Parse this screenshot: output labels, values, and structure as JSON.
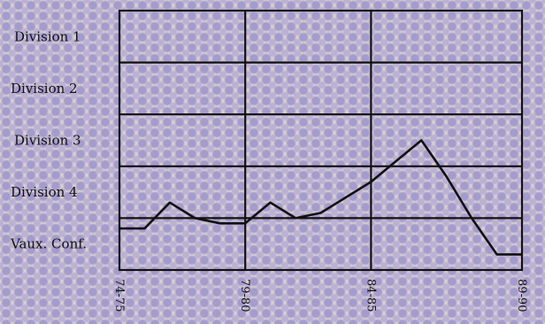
{
  "chart_data": {
    "type": "line",
    "title": "",
    "xlabel": "",
    "ylabel": "",
    "x_tick_labels": [
      "74-75",
      "79-80",
      "84-85",
      "89-90"
    ],
    "x": [
      1974,
      1975,
      1976,
      1977,
      1978,
      1979,
      1980,
      1981,
      1982,
      1983,
      1984,
      1985,
      1986,
      1987,
      1988,
      1989,
      1990
    ],
    "xlim": [
      1974,
      1990
    ],
    "y_categories": [
      "Vaux. Conf.",
      "Division 4",
      "Division 3",
      "Division 2",
      "Division 1"
    ],
    "ylim": [
      0,
      5
    ],
    "grid": true,
    "series": [
      {
        "values": [
          0.8,
          0.8,
          1.3,
          1.0,
          0.9,
          0.9,
          1.3,
          1.0,
          1.1,
          1.4,
          1.7,
          2.1,
          2.5,
          1.8,
          1.0,
          0.3,
          0.3
        ]
      }
    ]
  }
}
